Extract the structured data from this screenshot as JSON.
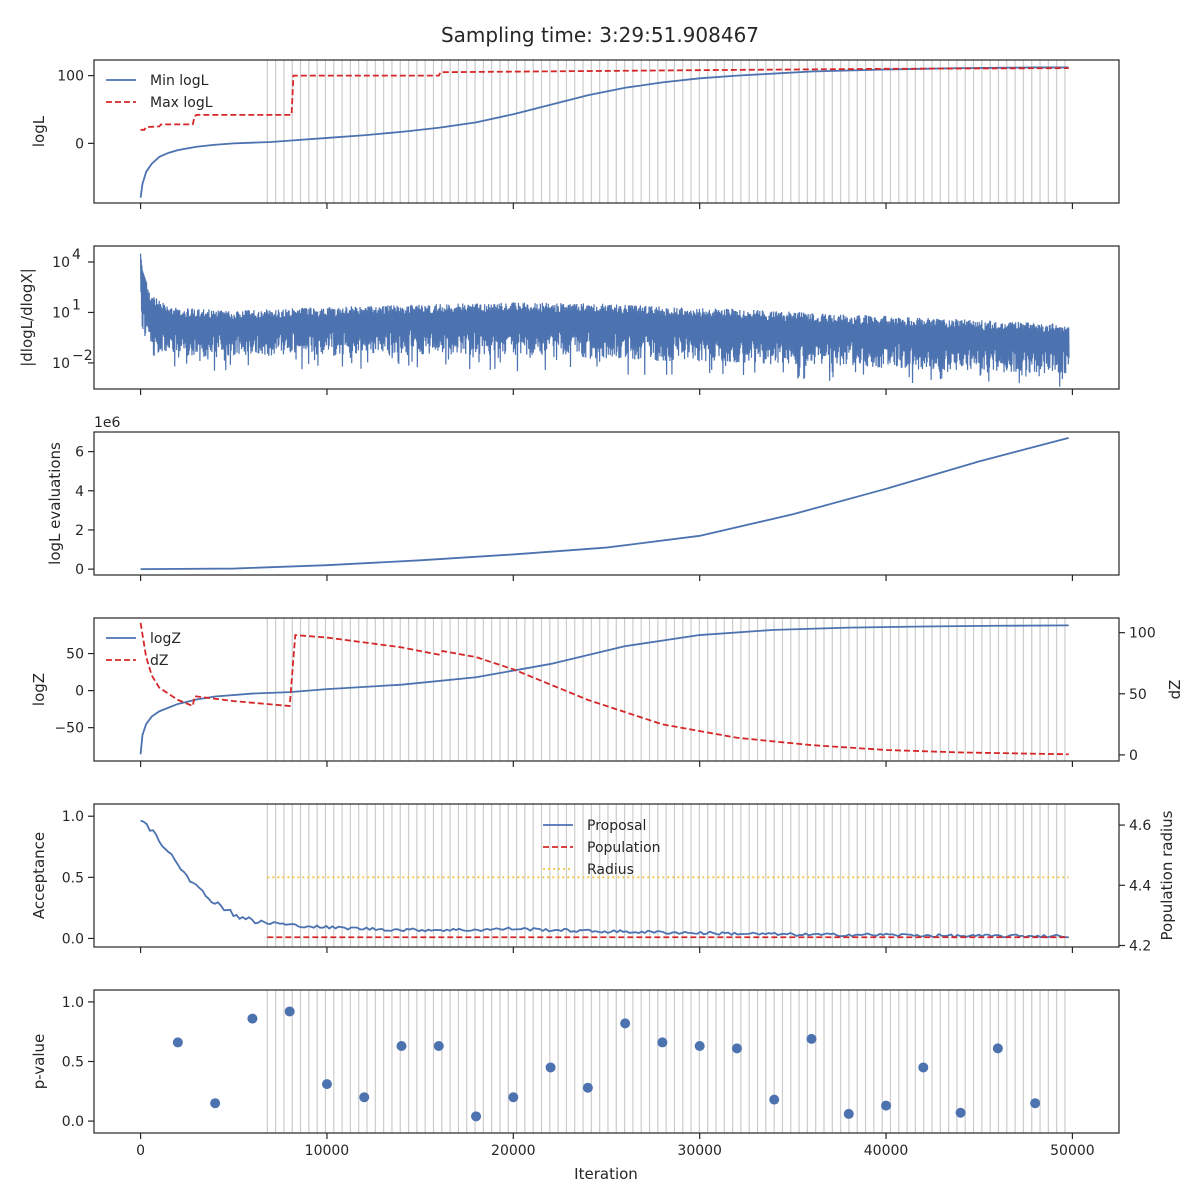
{
  "title": "Sampling time: 3:29:51.908467",
  "xlabel": "Iteration",
  "x_ticks": [
    0,
    10000,
    20000,
    30000,
    40000,
    50000
  ],
  "x_tick_labels": [
    "0",
    "10000",
    "20000",
    "30000",
    "40000",
    "50000"
  ],
  "xlim": [
    -2500,
    52500
  ],
  "colors": {
    "blue": "#4c72b0",
    "red": "#d62728",
    "yellow": "#f2c744",
    "vline": "#cccccc",
    "axis": "#262626"
  },
  "chart_data": [
    {
      "type": "line",
      "ylabel": "logL",
      "ylim": [
        -88,
        123
      ],
      "y_ticks": [
        0,
        100
      ],
      "y_tick_labels": [
        "0",
        "100"
      ],
      "legend": "top-left",
      "series": [
        {
          "name": "Min logL",
          "style": "solid",
          "color": "#4c72b0",
          "x": [
            0,
            100,
            300,
            600,
            1000,
            1500,
            2000,
            3000,
            4000,
            5000,
            6000,
            7000,
            8000,
            10000,
            12000,
            14000,
            16000,
            18000,
            20000,
            22000,
            24000,
            26000,
            28000,
            30000,
            32000,
            34000,
            36000,
            38000,
            40000,
            42000,
            44000,
            46000,
            48000,
            49800
          ],
          "y": [
            -80,
            -60,
            -42,
            -30,
            -20,
            -14,
            -10,
            -5,
            -2,
            0,
            1,
            2,
            4,
            8,
            12,
            17,
            23,
            31,
            43,
            57,
            71,
            82,
            90,
            96,
            100,
            103,
            106,
            107.5,
            109,
            110,
            111,
            111.5,
            112,
            112
          ]
        },
        {
          "name": "Max logL",
          "style": "dashed",
          "color": "#d62728",
          "x": [
            0,
            200,
            300,
            1000,
            1100,
            2800,
            2900,
            3000,
            6000,
            8100,
            8200,
            16000,
            16100,
            30000,
            40000,
            49800
          ],
          "y": [
            20,
            20,
            24,
            25,
            28,
            28,
            40,
            42,
            42,
            42,
            100,
            100,
            105,
            108,
            110,
            111
          ]
        }
      ],
      "vlines": [
        6800,
        49600
      ]
    },
    {
      "type": "line",
      "ylabel": "|dlogL/dlogX|",
      "yscale": "log",
      "ylim_log10": [
        -3.55,
        4.95
      ],
      "y_ticks_log10": [
        -2,
        1,
        4
      ],
      "y_tick_labels": [
        "10",
        "10",
        "10"
      ],
      "y_tick_exponents": [
        "−2",
        "1",
        "4"
      ],
      "series": [
        {
          "name": "",
          "style": "noisy-band",
          "color": "#4c72b0",
          "x": [
            0,
            100,
            500,
            1000,
            2000,
            5000,
            8000,
            12000,
            16000,
            20000,
            24000,
            28000,
            32000,
            36000,
            40000,
            44000,
            48000,
            49800
          ],
          "upper_log10": [
            4.5,
            3.5,
            2.2,
            1.7,
            1.3,
            1.1,
            1.25,
            1.4,
            1.5,
            1.6,
            1.55,
            1.4,
            1.2,
            1.0,
            0.8,
            0.6,
            0.4,
            0.3
          ],
          "lower_log10": [
            1.0,
            -0.5,
            -1.2,
            -1.5,
            -1.7,
            -1.6,
            -1.6,
            -1.5,
            -1.5,
            -1.6,
            -1.7,
            -1.9,
            -2.0,
            -2.2,
            -2.3,
            -2.5,
            -2.6,
            -2.6
          ]
        }
      ]
    },
    {
      "type": "line",
      "ylabel": "logL evaluations",
      "offset_text": "1e6",
      "ylim": [
        -0.3,
        7.0
      ],
      "y_ticks": [
        0,
        2,
        4,
        6
      ],
      "y_tick_labels": [
        "0",
        "2",
        "4",
        "6"
      ],
      "series": [
        {
          "name": "",
          "style": "solid",
          "color": "#4c72b0",
          "x": [
            0,
            5000,
            10000,
            15000,
            20000,
            25000,
            30000,
            35000,
            40000,
            45000,
            49800
          ],
          "y": [
            0,
            0.03,
            0.2,
            0.45,
            0.75,
            1.1,
            1.7,
            2.8,
            4.1,
            5.5,
            6.7
          ]
        }
      ]
    },
    {
      "type": "line",
      "ylabel": "logZ",
      "ylabel2": "dZ",
      "ylim": [
        -95,
        98
      ],
      "y_ticks": [
        -50,
        0,
        50
      ],
      "y_tick_labels": [
        "−50",
        "0",
        "50"
      ],
      "ylim2": [
        -5,
        112
      ],
      "y2_ticks": [
        0,
        50,
        100
      ],
      "y2_tick_labels": [
        "0",
        "50",
        "100"
      ],
      "legend": "top-left",
      "series": [
        {
          "name": "logZ",
          "style": "solid",
          "color": "#4c72b0",
          "axis": "left",
          "x": [
            0,
            100,
            300,
            600,
            1000,
            2000,
            3000,
            4000,
            6000,
            8000,
            10000,
            14000,
            18000,
            22000,
            26000,
            30000,
            34000,
            38000,
            42000,
            46000,
            49800
          ],
          "y": [
            -86,
            -60,
            -45,
            -35,
            -28,
            -18,
            -12,
            -8,
            -4,
            -2,
            2,
            8,
            18,
            36,
            60,
            75,
            82,
            85,
            86.5,
            87.5,
            88
          ]
        },
        {
          "name": "dZ",
          "style": "dashed",
          "color": "#d62728",
          "axis": "right",
          "x": [
            0,
            300,
            600,
            1000,
            1500,
            2000,
            2800,
            2900,
            5000,
            8000,
            8300,
            10000,
            14000,
            16000,
            16200,
            18000,
            20000,
            24000,
            28000,
            32000,
            36000,
            40000,
            44000,
            49800
          ],
          "y": [
            108,
            80,
            65,
            55,
            50,
            45,
            40,
            48,
            44,
            40,
            98,
            96,
            88,
            82,
            85,
            80,
            70,
            45,
            25,
            14,
            8,
            4,
            2,
            0.5
          ]
        }
      ],
      "vlines": [
        6800,
        49600
      ]
    },
    {
      "type": "line",
      "ylabel": "Acceptance",
      "ylabel2": "Population radius",
      "ylim": [
        -0.07,
        1.1
      ],
      "y_ticks": [
        0.0,
        0.5,
        1.0
      ],
      "y_tick_labels": [
        "0.0",
        "0.5",
        "1.0"
      ],
      "ylim2": [
        4.195,
        4.67
      ],
      "y2_ticks": [
        4.2,
        4.4,
        4.6
      ],
      "y2_tick_labels": [
        "4.2",
        "4.4",
        "4.6"
      ],
      "legend": "top-center",
      "series": [
        {
          "name": "Proposal",
          "style": "solid",
          "color": "#4c72b0",
          "axis": "left",
          "x": [
            0,
            300,
            700,
            1000,
            1500,
            2000,
            2500,
            3000,
            3500,
            4000,
            4500,
            5000,
            5500,
            6000,
            6500,
            7000,
            8000,
            9000,
            10000,
            12000,
            14000,
            16000,
            18000,
            20000,
            24000,
            28000,
            32000,
            36000,
            40000,
            44000,
            48000,
            49800
          ],
          "y": [
            0.98,
            0.92,
            0.88,
            0.8,
            0.72,
            0.62,
            0.52,
            0.42,
            0.35,
            0.3,
            0.25,
            0.2,
            0.17,
            0.14,
            0.13,
            0.13,
            0.11,
            0.1,
            0.09,
            0.08,
            0.07,
            0.07,
            0.07,
            0.08,
            0.06,
            0.05,
            0.04,
            0.03,
            0.03,
            0.02,
            0.02,
            0.02
          ]
        },
        {
          "name": "Population",
          "style": "dashed",
          "color": "#d62728",
          "axis": "left",
          "x": [
            6800,
            49800
          ],
          "y": [
            0.01,
            0.01
          ]
        },
        {
          "name": "Radius",
          "style": "dotted",
          "color": "#f2c744",
          "axis": "left",
          "x": [
            6800,
            49800
          ],
          "y": [
            0.5,
            0.5
          ]
        }
      ],
      "vlines": [
        6800,
        49600
      ]
    },
    {
      "type": "scatter",
      "ylabel": "p-value",
      "ylim": [
        -0.1,
        1.1
      ],
      "y_ticks": [
        0.0,
        0.5,
        1.0
      ],
      "y_tick_labels": [
        "0.0",
        "0.5",
        "1.0"
      ],
      "series": [
        {
          "name": "",
          "color": "#4c72b0",
          "x": [
            2000,
            4000,
            6000,
            8000,
            10000,
            12000,
            14000,
            16000,
            18000,
            20000,
            22000,
            24000,
            26000,
            28000,
            30000,
            32000,
            34000,
            36000,
            38000,
            40000,
            42000,
            44000,
            46000,
            48000
          ],
          "y": [
            0.66,
            0.15,
            0.86,
            0.92,
            0.31,
            0.2,
            0.63,
            0.63,
            0.04,
            0.2,
            0.45,
            0.28,
            0.82,
            0.66,
            0.63,
            0.61,
            0.18,
            0.69,
            0.06,
            0.13,
            0.45,
            0.07,
            0.61,
            0.15
          ]
        }
      ],
      "vlines": [
        6800,
        49600
      ]
    }
  ]
}
